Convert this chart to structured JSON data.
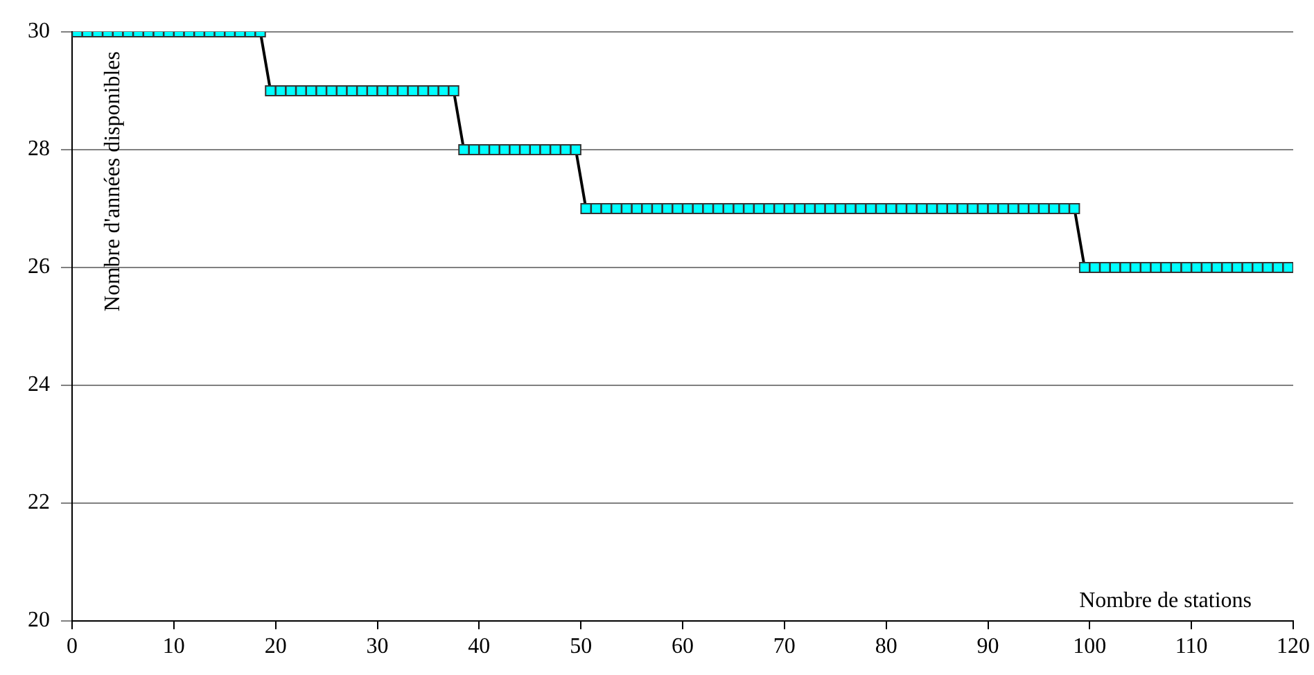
{
  "chart_data": {
    "type": "line",
    "xlabel": "Nombre de stations",
    "ylabel": "Nombre d'années disponibles",
    "xlim": [
      0,
      120
    ],
    "xticks": [
      0,
      10,
      20,
      30,
      40,
      50,
      60,
      70,
      80,
      90,
      100,
      110,
      120
    ],
    "ylim": [
      20,
      30
    ],
    "yticks": [
      20,
      22,
      24,
      26,
      28,
      30
    ],
    "grid": "y",
    "legend": false,
    "marker": "square",
    "line_style": "solid",
    "series": [
      {
        "color": "#00ffff",
        "x": [
          0.5,
          1.5,
          2.5,
          3.5,
          4.5,
          5.5,
          6.5,
          7.5,
          8.5,
          9.5,
          10.5,
          11.5,
          12.5,
          13.5,
          14.5,
          15.5,
          16.5,
          17.5,
          18.5,
          19.5,
          20.5,
          21.5,
          22.5,
          23.5,
          24.5,
          25.5,
          26.5,
          27.5,
          28.5,
          29.5,
          30.5,
          31.5,
          32.5,
          33.5,
          34.5,
          35.5,
          36.5,
          37.5,
          38.5,
          39.5,
          40.5,
          41.5,
          42.5,
          43.5,
          44.5,
          45.5,
          46.5,
          47.5,
          48.5,
          49.5,
          50.5,
          51.5,
          52.5,
          53.5,
          54.5,
          55.5,
          56.5,
          57.5,
          58.5,
          59.5,
          60.5,
          61.5,
          62.5,
          63.5,
          64.5,
          65.5,
          66.5,
          67.5,
          68.5,
          69.5,
          70.5,
          71.5,
          72.5,
          73.5,
          74.5,
          75.5,
          76.5,
          77.5,
          78.5,
          79.5,
          80.5,
          81.5,
          82.5,
          83.5,
          84.5,
          85.5,
          86.5,
          87.5,
          88.5,
          89.5,
          90.5,
          91.5,
          92.5,
          93.5,
          94.5,
          95.5,
          96.5,
          97.5,
          98.5,
          99.5,
          100.5,
          101.5,
          102.5,
          103.5,
          104.5,
          105.5,
          106.5,
          107.5,
          108.5,
          109.5,
          110.5,
          111.5,
          112.5,
          113.5,
          114.5,
          115.5,
          116.5,
          117.5,
          118.5,
          119.5
        ],
        "values": [
          30,
          30,
          30,
          30,
          30,
          30,
          30,
          30,
          30,
          30,
          30,
          30,
          30,
          30,
          30,
          30,
          30,
          30,
          30,
          29,
          29,
          29,
          29,
          29,
          29,
          29,
          29,
          29,
          29,
          29,
          29,
          29,
          29,
          29,
          29,
          29,
          29,
          29,
          28,
          28,
          28,
          28,
          28,
          28,
          28,
          28,
          28,
          28,
          28,
          28,
          27,
          27,
          27,
          27,
          27,
          27,
          27,
          27,
          27,
          27,
          27,
          27,
          27,
          27,
          27,
          27,
          27,
          27,
          27,
          27,
          27,
          27,
          27,
          27,
          27,
          27,
          27,
          27,
          27,
          27,
          27,
          27,
          27,
          27,
          27,
          27,
          27,
          27,
          27,
          27,
          27,
          27,
          27,
          27,
          27,
          27,
          27,
          27,
          27,
          26,
          26,
          26,
          26,
          26,
          26,
          26,
          26,
          26,
          26,
          26,
          26,
          26,
          26,
          26,
          26,
          26,
          26,
          26,
          26,
          26
        ]
      }
    ]
  }
}
